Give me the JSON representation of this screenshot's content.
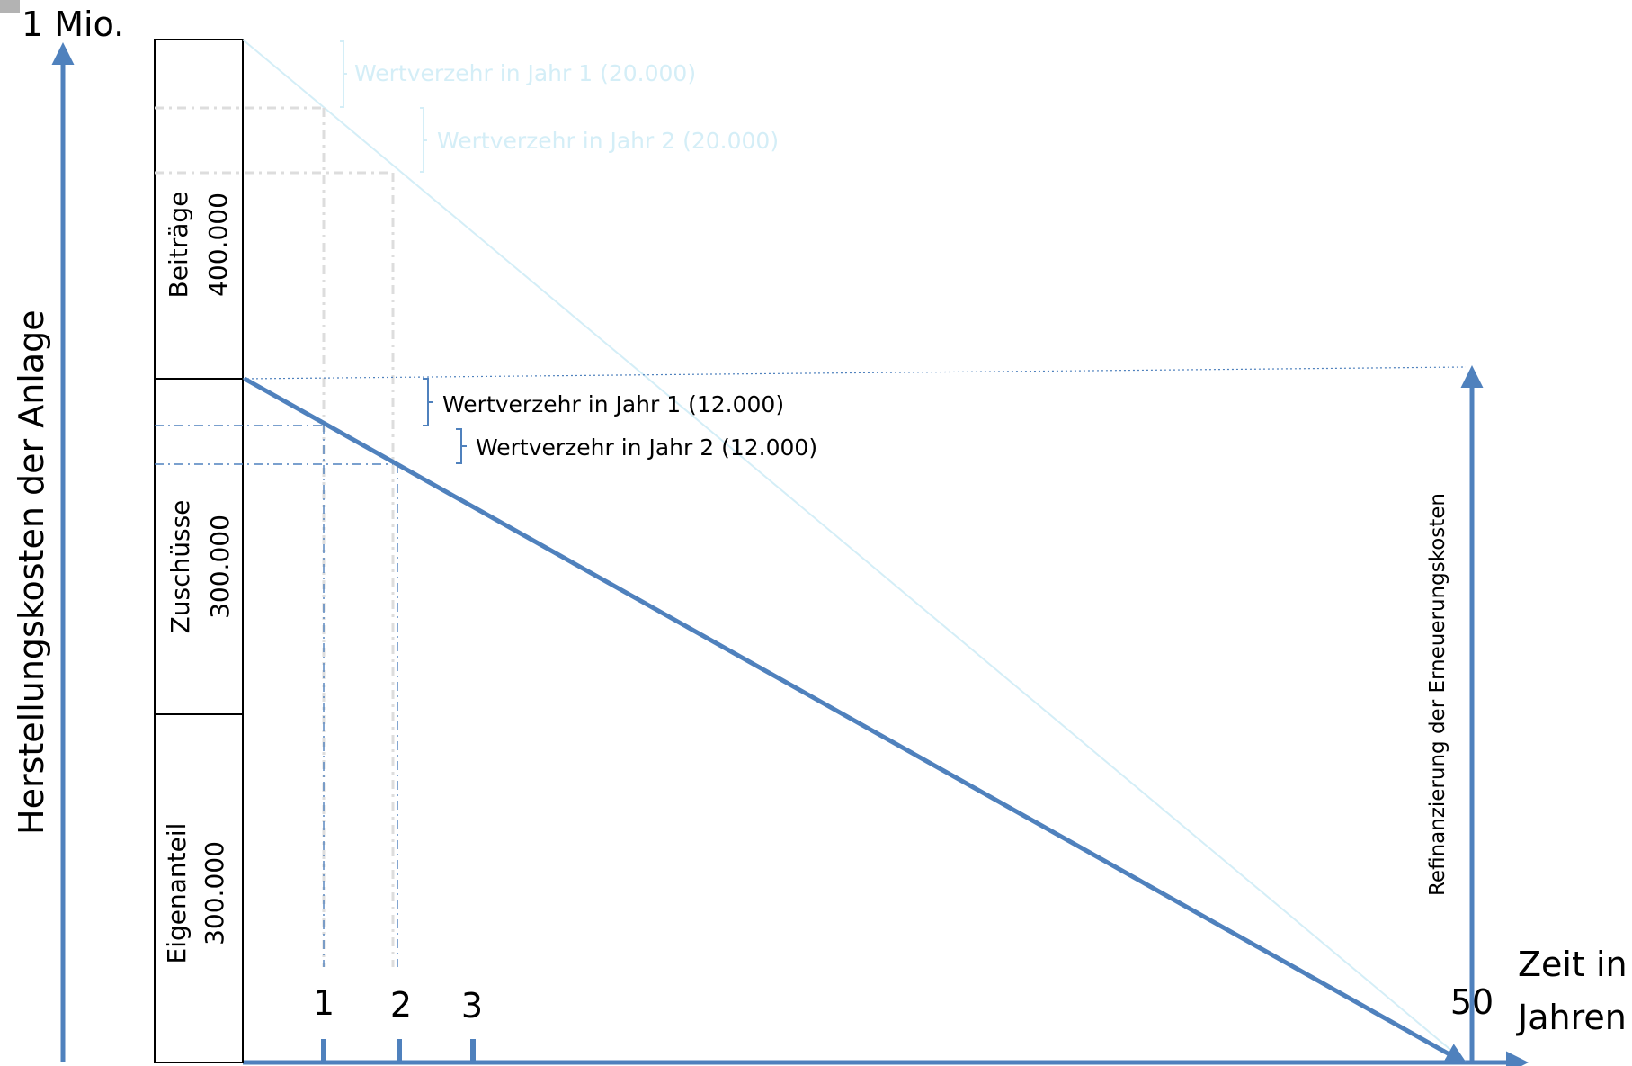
{
  "top_label": "1 Mio.",
  "y_axis_label": "Herstellungskosten der Anlage",
  "x_axis_label": [
    "Zeit in",
    "Jahren"
  ],
  "segments": [
    {
      "name": "Beiträge",
      "value": "400.000"
    },
    {
      "name": "Zuschüsse",
      "value": "300.000"
    },
    {
      "name": "Eigenanteil",
      "value": "300.000"
    }
  ],
  "annotations": {
    "faint_year1": "Wertverzehr in Jahr 1 (20.000)",
    "faint_year2": "Wertverzehr in Jahr 2 (20.000)",
    "year1": "Wertverzehr in Jahr 1 (12.000)",
    "year2": "Wertverzehr in Jahr 2 (12.000)"
  },
  "refinancing_label": "Refinanzierung der Erneuerungskosten",
  "ticks": [
    "1",
    "2",
    "3",
    "50"
  ],
  "colors": {
    "axis": "#4f81bd",
    "faint": "#d4eef7",
    "box": "#000000"
  }
}
